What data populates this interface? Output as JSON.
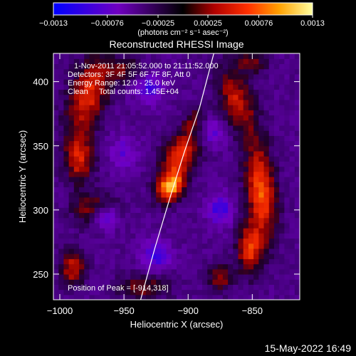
{
  "chart_data": {
    "type": "heatmap",
    "title": "Reconstructed RHESSI Image",
    "xlabel": "Heliocentric X (arcsec)",
    "ylabel": "Heliocentric Y (arcsec)",
    "xlim": [
      -1005,
      -813
    ],
    "ylim": [
      230,
      422
    ],
    "x_ticks": [
      -1000,
      -950,
      -900,
      -850
    ],
    "x_tick_labels": [
      "−1000",
      "−950",
      "−900",
      "−850"
    ],
    "y_ticks": [
      250,
      300,
      350,
      400
    ],
    "y_tick_labels": [
      "250",
      "300",
      "350",
      "400"
    ],
    "colorbar": {
      "ticks": [
        -0.0013,
        -0.00076,
        -0.00025,
        0.00025,
        0.00076,
        0.0013
      ],
      "tick_labels": [
        "−0.0013",
        "−0.00076",
        "−0.00025",
        "0.00025",
        "0.00076",
        "0.0013"
      ],
      "unit_label": "(photons cm⁻² s⁻¹ asec⁻²)",
      "range": [
        -0.0013,
        0.0013
      ]
    },
    "peak": [
      -914,
      318
    ],
    "limb_curve": [
      [
        -937,
        230
      ],
      [
        -926,
        270
      ],
      [
        -914,
        310
      ],
      [
        -903,
        345
      ],
      [
        -891,
        380
      ],
      [
        -880,
        422
      ]
    ],
    "sources": [
      {
        "x": -914,
        "y": 318,
        "sx": 7,
        "sy": 9,
        "amp": 0.0013,
        "rot": -0.7
      },
      {
        "x": -906,
        "y": 343,
        "sx": 9,
        "sy": 13,
        "amp": 0.00095,
        "rot": -0.6
      },
      {
        "x": -896,
        "y": 370,
        "sx": 5,
        "sy": 9,
        "amp": 0.00045,
        "rot": -0.5
      },
      {
        "x": -978,
        "y": 390,
        "sx": 10,
        "sy": 22,
        "amp": 0.0009,
        "rot": -0.3
      },
      {
        "x": -985,
        "y": 340,
        "sx": 8,
        "sy": 14,
        "amp": 0.0008,
        "rot": 0
      },
      {
        "x": -972,
        "y": 300,
        "sx": 12,
        "sy": 9,
        "amp": 0.0007,
        "rot": 0
      },
      {
        "x": -990,
        "y": 255,
        "sx": 7,
        "sy": 10,
        "amp": 0.00075,
        "rot": 0
      },
      {
        "x": -950,
        "y": 410,
        "sx": 10,
        "sy": 7,
        "amp": 0.0005,
        "rot": 0
      },
      {
        "x": -935,
        "y": 240,
        "sx": 14,
        "sy": 7,
        "amp": 0.00055,
        "rot": 0
      },
      {
        "x": -843,
        "y": 315,
        "sx": 8,
        "sy": 26,
        "amp": 0.00105,
        "rot": 0.1
      },
      {
        "x": -852,
        "y": 270,
        "sx": 7,
        "sy": 14,
        "amp": 0.0009,
        "rot": 0
      },
      {
        "x": -862,
        "y": 385,
        "sx": 9,
        "sy": 20,
        "amp": 0.00075,
        "rot": 0.3
      },
      {
        "x": -875,
        "y": 248,
        "sx": 7,
        "sy": 8,
        "amp": 0.0006,
        "rot": 0
      },
      {
        "x": -850,
        "y": 415,
        "sx": 8,
        "sy": 6,
        "amp": 0.0005,
        "rot": 0
      },
      {
        "x": -965,
        "y": 295,
        "sx": 7,
        "sy": 7,
        "amp": -0.0009,
        "rot": 0
      },
      {
        "x": -925,
        "y": 265,
        "sx": 8,
        "sy": 8,
        "amp": -0.0006,
        "rot": 0
      },
      {
        "x": -930,
        "y": 395,
        "sx": 8,
        "sy": 8,
        "amp": -0.0006,
        "rot": 0
      },
      {
        "x": -875,
        "y": 300,
        "sx": 7,
        "sy": 9,
        "amp": -0.0006,
        "rot": 0
      },
      {
        "x": -880,
        "y": 360,
        "sx": 7,
        "sy": 7,
        "amp": -0.0005,
        "rot": 0
      },
      {
        "x": -950,
        "y": 345,
        "sx": 8,
        "sy": 10,
        "amp": -0.0004,
        "rot": 0
      }
    ]
  },
  "overlay": {
    "time_range": "1-Nov-2011 21:05:52.000 to 21:11:52.000",
    "detectors": "Detectors: 3F 4F 5F 6F 7F 8F, Att 0",
    "energy": "Energy Range: 12.0 - 25.0 keV",
    "clean": "Clean     Total counts: 1.45E+04",
    "peak_prefix": "Position of Peak = ",
    "peak_value": "[-914,318]"
  },
  "footer": {
    "timestamp": "15-May-2022 16:49"
  },
  "colors": {
    "background": "#000000",
    "text": "#ffffff",
    "limb": "#ffffff"
  }
}
